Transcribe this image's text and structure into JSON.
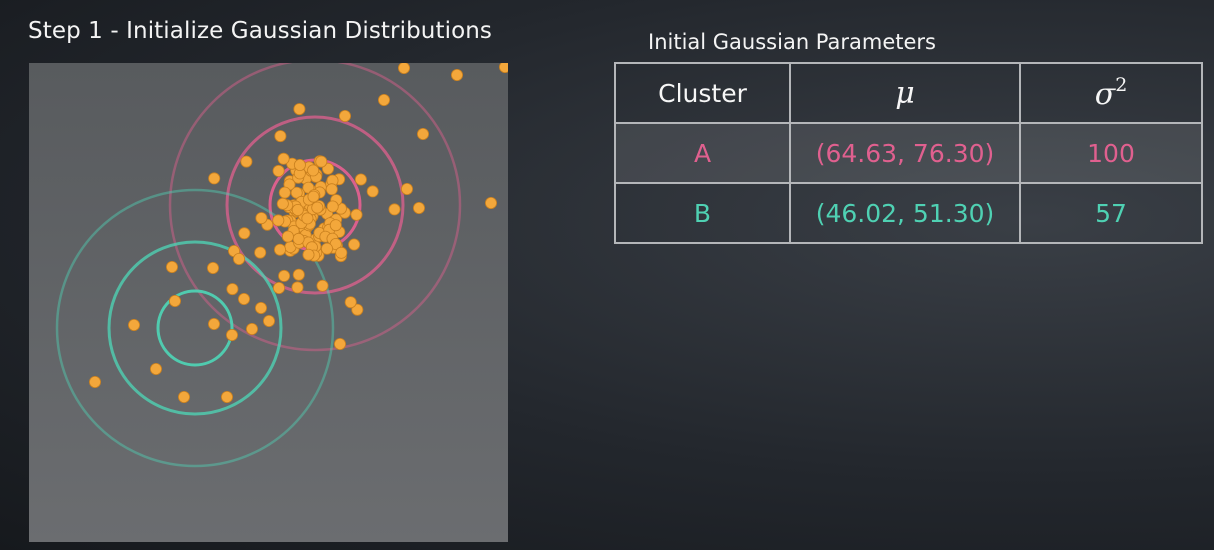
{
  "step_title": "Step 1 - Initialize Gaussian Distributions",
  "table": {
    "title": "Initial Gaussian Parameters",
    "headers": {
      "cluster": "Cluster",
      "mu": "μ",
      "sigma": "σ",
      "sigma_exp": "2"
    },
    "rows": [
      {
        "cluster": "A",
        "mu": "(64.63, 76.30)",
        "sigma2": "100"
      },
      {
        "cluster": "B",
        "mu": "(46.02, 51.30)",
        "sigma2": "57"
      }
    ]
  },
  "colors": {
    "cluster_a": "#e0608f",
    "cluster_b": "#4fd1b3",
    "points": "#f3a73b"
  }
}
